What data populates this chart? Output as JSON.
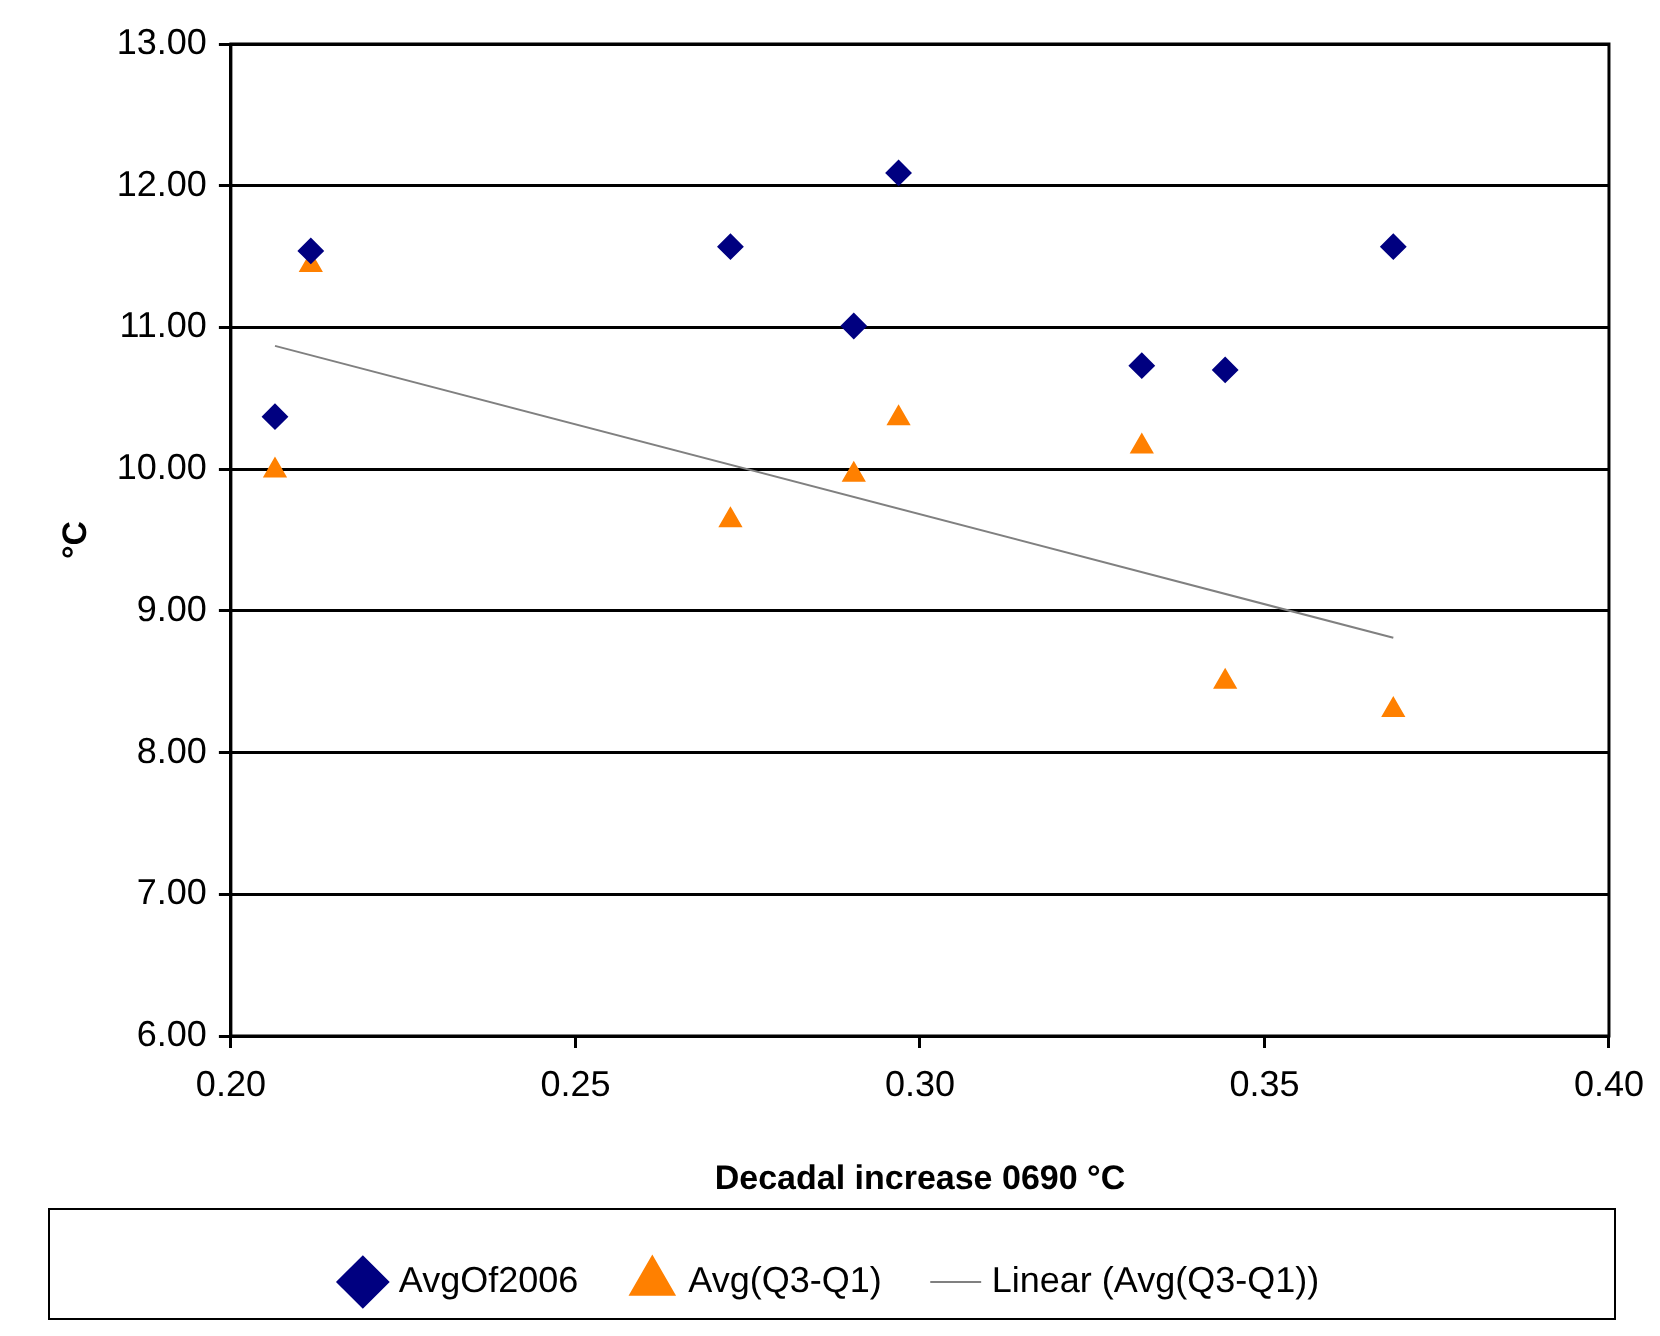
{
  "chart_data": {
    "type": "scatter",
    "xlabel": "Decadal increase 0690 °C",
    "ylabel": "°C",
    "xlim": [
      0.2,
      0.4
    ],
    "ylim": [
      6,
      13
    ],
    "xticks": [
      {
        "value": 0.2,
        "label": "0.20"
      },
      {
        "value": 0.25,
        "label": "0.25"
      },
      {
        "value": 0.3,
        "label": "0.30"
      },
      {
        "value": 0.35,
        "label": "0.35"
      },
      {
        "value": 0.4,
        "label": "0.40"
      }
    ],
    "yticks": [
      {
        "value": 6,
        "label": "6.00"
      },
      {
        "value": 7,
        "label": "7.00"
      },
      {
        "value": 8,
        "label": "8.00"
      },
      {
        "value": 9,
        "label": "9.00"
      },
      {
        "value": 10,
        "label": "10.00"
      },
      {
        "value": 11,
        "label": "11.00"
      },
      {
        "value": 12,
        "label": "12.00"
      },
      {
        "value": 13,
        "label": "13.00"
      }
    ],
    "grid": "y",
    "legend": "bottom",
    "series": [
      {
        "name": "AvgOf2006",
        "color": "#000080",
        "marker": "diamond",
        "x": [
          0.2064,
          0.2116,
          0.2725,
          0.2904,
          0.2969,
          0.3322,
          0.3443,
          0.3687
        ],
        "values": [
          10.37,
          11.54,
          11.57,
          11.01,
          12.09,
          10.73,
          10.7,
          11.57
        ]
      },
      {
        "name": "Avg(Q3-Q1)",
        "color": "#ff8000",
        "marker": "triangle",
        "x": [
          0.2064,
          0.2116,
          0.2725,
          0.2904,
          0.2969,
          0.3322,
          0.3443,
          0.3687
        ],
        "values": [
          9.99,
          11.44,
          9.64,
          9.96,
          10.36,
          10.16,
          8.5,
          8.3
        ]
      },
      {
        "name": "Linear (Avg(Q3-Q1))",
        "type": "line",
        "color": "#808080",
        "marker": "none",
        "line_style": "solid",
        "x": [
          0.2064,
          0.3687
        ],
        "values": [
          10.87,
          8.81
        ]
      }
    ]
  }
}
